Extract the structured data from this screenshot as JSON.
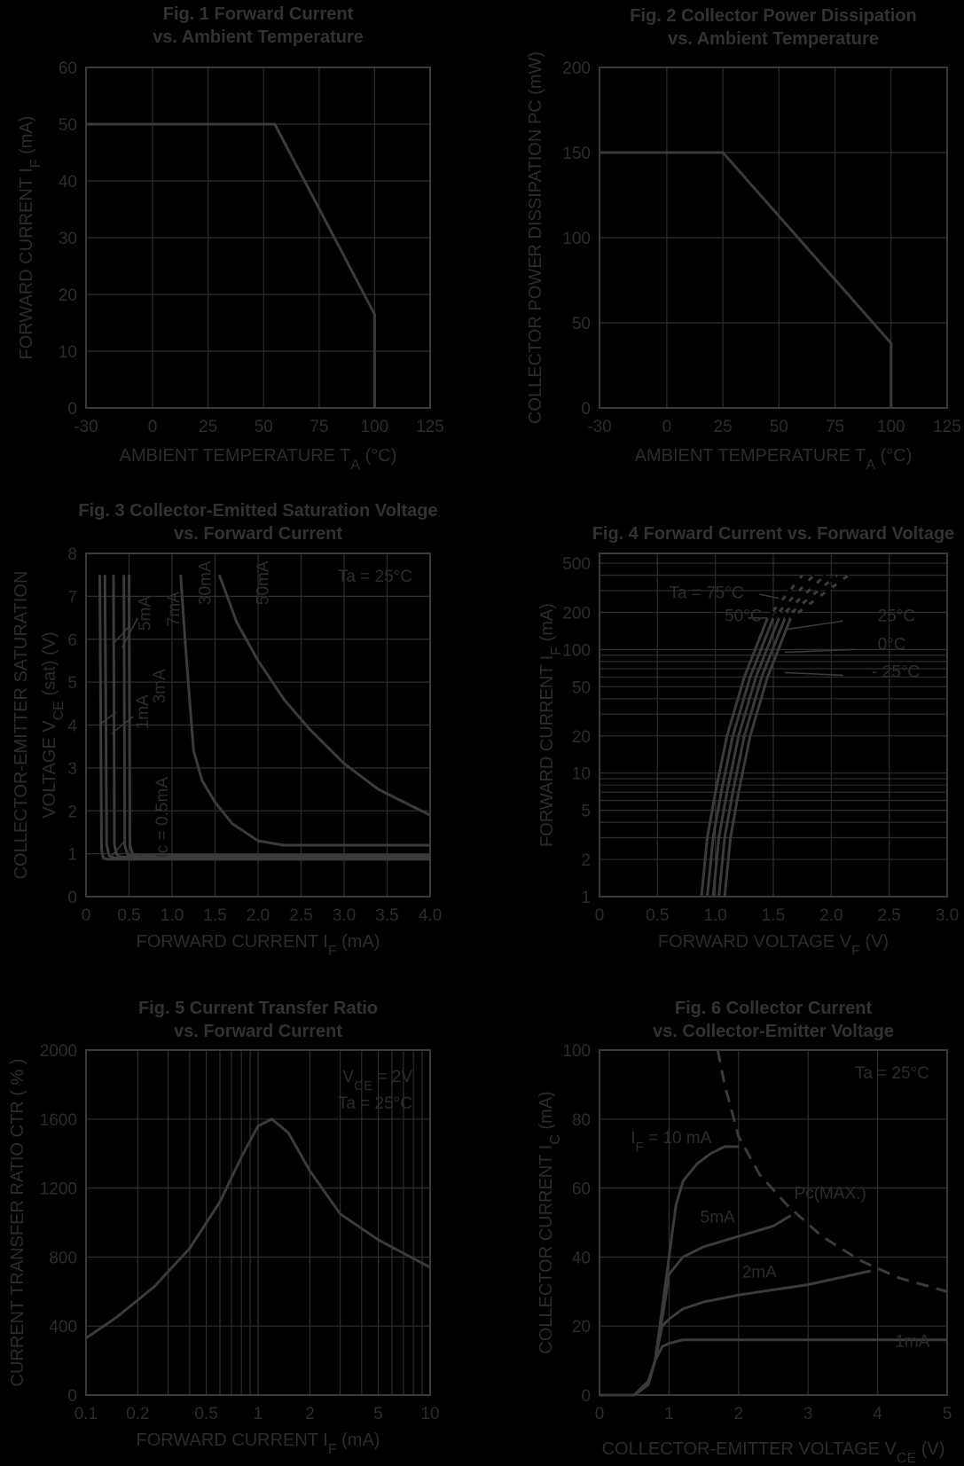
{
  "colors": {
    "background": "#000000",
    "grid": "#2e2e2e",
    "frame": "#3a3a3a",
    "curve": "#3b3b3b",
    "title": "#323232",
    "label": "#2c2c2c"
  },
  "chart_data": [
    {
      "id": "fig1",
      "type": "line",
      "title": [
        "Fig. 1 Forward Current",
        "vs. Ambient Temperature"
      ],
      "xlabel": {
        "main": "AMBIENT TEMPERATURE T",
        "sub": "A",
        "tail": " (°C)"
      },
      "ylabel": {
        "main": "FORWARD CURRENT I",
        "sub": "F",
        "tail": " (mA)"
      },
      "xlim": [
        -30,
        125
      ],
      "ylim": [
        0,
        60
      ],
      "xticks": [
        "-30",
        "0",
        "25",
        "50",
        "75",
        "100",
        "125"
      ],
      "yticks": [
        "0",
        "10",
        "20",
        "30",
        "40",
        "50",
        "60"
      ],
      "grid": true,
      "series": [
        {
          "x": [
            -30,
            55,
            100,
            100
          ],
          "y": [
            50,
            50,
            16.5,
            0
          ]
        }
      ]
    },
    {
      "id": "fig2",
      "type": "line",
      "title": [
        "Fig. 2 Collector Power Dissipation",
        "vs. Ambient Temperature"
      ],
      "xlabel": {
        "main": "AMBIENT TEMPERATURE T",
        "sub": "A",
        "tail": " (°C)"
      },
      "ylabel": {
        "main": "COLLECTOR POWER DISSIPATION PC (mW)",
        "sub": "",
        "tail": ""
      },
      "xlim": [
        -30,
        125
      ],
      "ylim": [
        0,
        200
      ],
      "xticks": [
        "-30",
        "0",
        "25",
        "50",
        "75",
        "100",
        "125"
      ],
      "yticks": [
        "0",
        "50",
        "100",
        "150",
        "200"
      ],
      "grid": true,
      "series": [
        {
          "x": [
            -30,
            25,
            100,
            100
          ],
          "y": [
            150,
            150,
            38,
            0
          ]
        }
      ]
    },
    {
      "id": "fig3",
      "type": "line",
      "title": [
        "Fig. 3 Collector-Emitted Saturation Voltage",
        "vs. Forward Current"
      ],
      "xlabel": {
        "main": "FORWARD CURRENT I",
        "sub": "F",
        "tail": " (mA)"
      },
      "ylabel": {
        "main": "COLLECTOR-EMITTER SATURATION",
        "line2": "VOLTAGE V",
        "sub": "CE",
        "tail": " (sat) (V)"
      },
      "xlim": [
        0,
        4
      ],
      "ylim": [
        0,
        8
      ],
      "xticks": [
        "0",
        "0.5",
        "1.0",
        "1.5",
        "2.0",
        "2.5",
        "3.0",
        "3.5",
        "4.0"
      ],
      "yticks": [
        "0",
        "1",
        "2",
        "3",
        "4",
        "5",
        "6",
        "7",
        "8"
      ],
      "grid": true,
      "annotation": "Ta = 25°C",
      "series_labels": [
        "Ic = 0.5mA",
        "1mA",
        "3mA",
        "5mA",
        "7mA",
        "30mA",
        "50mA"
      ],
      "series": [
        {
          "name": "Ic = 0.5mA",
          "x": [
            0.16,
            0.18,
            0.2,
            0.25,
            4.0
          ],
          "y": [
            7.5,
            1.1,
            0.9,
            0.87,
            0.87
          ]
        },
        {
          "name": "1mA",
          "x": [
            0.22,
            0.24,
            0.27,
            0.33,
            4.0
          ],
          "y": [
            7.5,
            1.2,
            0.95,
            0.9,
            0.9
          ]
        },
        {
          "name": "3mA",
          "x": [
            0.32,
            0.33,
            0.36,
            0.42,
            4.0
          ],
          "y": [
            7.5,
            1.2,
            0.97,
            0.92,
            0.92
          ]
        },
        {
          "name": "5mA",
          "x": [
            0.44,
            0.45,
            0.48,
            0.55,
            4.0
          ],
          "y": [
            7.5,
            1.2,
            0.98,
            0.94,
            0.94
          ]
        },
        {
          "name": "7mA",
          "x": [
            0.5,
            0.51,
            0.54,
            0.6,
            4.0
          ],
          "y": [
            7.5,
            1.2,
            1.0,
            0.96,
            0.96
          ]
        },
        {
          "name": "30mA",
          "x": [
            1.1,
            1.15,
            1.2,
            1.25,
            1.35,
            1.5,
            1.7,
            2.0,
            2.3,
            4.0
          ],
          "y": [
            7.5,
            6.0,
            4.7,
            3.4,
            2.7,
            2.2,
            1.7,
            1.3,
            1.2,
            1.2
          ]
        },
        {
          "name": "50mA",
          "x": [
            1.55,
            1.75,
            2.0,
            2.3,
            2.6,
            3.0,
            3.4,
            4.0
          ],
          "y": [
            7.5,
            6.4,
            5.5,
            4.6,
            3.9,
            3.1,
            2.5,
            1.9
          ]
        }
      ]
    },
    {
      "id": "fig4",
      "type": "line",
      "title": [
        "Fig. 4 Forward Current vs. Forward Voltage"
      ],
      "xlabel": {
        "main": "FORWARD VOLTAGE V",
        "sub": "F",
        "tail": " (V)"
      },
      "ylabel": {
        "main": "FORWARD CURRENT I",
        "sub": "F",
        "tail": " (mA)"
      },
      "xlim": [
        0,
        3.0
      ],
      "ylim": [
        1,
        600
      ],
      "yscale": "log",
      "xticks": [
        "0",
        "0.5",
        "1.0",
        "1.5",
        "2.0",
        "2.5",
        "3.0"
      ],
      "yticks": [
        {
          "v": 1,
          "t": "1"
        },
        {
          "v": 2,
          "t": "2"
        },
        {
          "v": 5,
          "t": "5"
        },
        {
          "v": 10,
          "t": "10"
        },
        {
          "v": 20,
          "t": "20"
        },
        {
          "v": 50,
          "t": "50"
        },
        {
          "v": 100,
          "t": "100"
        },
        {
          "v": 200,
          "t": "200"
        },
        {
          "v": 500,
          "t": "500"
        }
      ],
      "grid": true,
      "series_labels": [
        "Ta = 75°C",
        "50°C",
        "25°C",
        "0°C",
        "- 25°C"
      ],
      "series": [
        {
          "name": "Ta = 75°C",
          "x": [
            0.88,
            0.93,
            1.0,
            1.1,
            1.25,
            1.45,
            1.75
          ],
          "y": [
            1,
            3,
            7,
            20,
            60,
            180,
            400
          ]
        },
        {
          "name": "50°C",
          "x": [
            0.93,
            0.98,
            1.05,
            1.15,
            1.3,
            1.5,
            1.85
          ],
          "y": [
            1,
            3,
            7,
            20,
            60,
            180,
            400
          ]
        },
        {
          "name": "25°C",
          "x": [
            0.98,
            1.03,
            1.1,
            1.2,
            1.35,
            1.55,
            1.95
          ],
          "y": [
            1,
            3,
            7,
            20,
            60,
            180,
            400
          ]
        },
        {
          "name": "0°C",
          "x": [
            1.03,
            1.08,
            1.15,
            1.25,
            1.4,
            1.6,
            2.05
          ],
          "y": [
            1,
            3,
            7,
            20,
            60,
            180,
            400
          ]
        },
        {
          "name": "- 25°C",
          "x": [
            1.08,
            1.13,
            1.2,
            1.3,
            1.45,
            1.65,
            2.15
          ],
          "y": [
            1,
            3,
            7,
            20,
            60,
            180,
            400
          ]
        }
      ]
    },
    {
      "id": "fig5",
      "type": "line",
      "title": [
        "Fig. 5 Current Transfer Ratio",
        "vs. Forward Current"
      ],
      "xlabel": {
        "main": "FORWARD CURRENT I",
        "sub": "F",
        "tail": " (mA)"
      },
      "ylabel": {
        "main": "CURRENT TRANSFER RATIO CTR ( % )",
        "sub": "",
        "tail": ""
      },
      "xlim": [
        0.1,
        10
      ],
      "xscale": "log",
      "ylim": [
        0,
        2000
      ],
      "xticks": [
        {
          "v": 0.1,
          "t": "0.1"
        },
        {
          "v": 0.2,
          "t": "0.2"
        },
        {
          "v": 0.5,
          "t": "0.5"
        },
        {
          "v": 1,
          "t": "1"
        },
        {
          "v": 2,
          "t": "2"
        },
        {
          "v": 5,
          "t": "5"
        },
        {
          "v": 10,
          "t": "10"
        }
      ],
      "yticks": [
        "0",
        "400",
        "800",
        "1200",
        "1600",
        "2000"
      ],
      "grid": true,
      "annotation_lines": [
        {
          "main": "V",
          "sub": "CE",
          "tail": " = 2V"
        },
        {
          "main": "Ta = 25°C",
          "sub": "",
          "tail": ""
        }
      ],
      "series": [
        {
          "x": [
            0.1,
            0.15,
            0.25,
            0.4,
            0.6,
            0.8,
            1.0,
            1.2,
            1.5,
            2.0,
            3.0,
            5.0,
            10
          ],
          "y": [
            330,
            450,
            630,
            850,
            1120,
            1380,
            1560,
            1600,
            1520,
            1300,
            1050,
            900,
            740
          ]
        }
      ]
    },
    {
      "id": "fig6",
      "type": "line",
      "title": [
        "Fig. 6 Collector Current",
        "vs. Collector-Emitter Voltage"
      ],
      "xlabel": {
        "main": "COLLECTOR-EMITTER VOLTAGE V",
        "sub": "CE",
        "tail": " (V)"
      },
      "ylabel": {
        "main": "COLLECTOR CURRENT I",
        "sub": "C",
        "tail": " (mA)"
      },
      "xlim": [
        0,
        5
      ],
      "ylim": [
        0,
        100
      ],
      "xticks": [
        "0",
        "1",
        "2",
        "3",
        "4",
        "5"
      ],
      "yticks": [
        "0",
        "20",
        "40",
        "60",
        "80",
        "100"
      ],
      "grid": true,
      "annotation": "Ta = 25°C",
      "series_labels": [
        {
          "main": "I",
          "sub": "F",
          "tail": " = 10 mA"
        },
        {
          "main": "5mA",
          "sub": "",
          "tail": ""
        },
        {
          "main": "2mA",
          "sub": "",
          "tail": ""
        },
        {
          "main": "1mA",
          "sub": "",
          "tail": ""
        },
        {
          "main": "Pc(MAX.)",
          "sub": "",
          "tail": ""
        }
      ],
      "series": [
        {
          "name": "10 mA",
          "x": [
            0,
            0.5,
            0.7,
            0.8,
            0.9,
            1.0,
            1.1,
            1.2,
            1.4,
            1.6,
            1.8,
            2.0
          ],
          "y": [
            0,
            0,
            3,
            10,
            25,
            40,
            55,
            62,
            67,
            70,
            72,
            72
          ]
        },
        {
          "name": "5mA",
          "x": [
            0,
            0.5,
            0.7,
            0.8,
            0.9,
            1.0,
            1.2,
            1.5,
            2.0,
            2.5,
            2.75
          ],
          "y": [
            0,
            0,
            3,
            10,
            22,
            35,
            40,
            43,
            46,
            49,
            52
          ]
        },
        {
          "name": "2mA",
          "x": [
            0,
            0.5,
            0.7,
            0.8,
            0.9,
            1.0,
            1.2,
            1.5,
            2.0,
            3.0,
            3.9
          ],
          "y": [
            0,
            0,
            3,
            10,
            20,
            22,
            25,
            27,
            29,
            32,
            36
          ]
        },
        {
          "name": "1mA",
          "x": [
            0,
            0.5,
            0.7,
            0.8,
            0.9,
            1.0,
            1.2,
            1.5,
            5.0
          ],
          "y": [
            0,
            0,
            4,
            10,
            14,
            15,
            16,
            16,
            16
          ]
        },
        {
          "name": "Pc(MAX.)",
          "dashed": true,
          "x": [
            1.7,
            1.8,
            2.0,
            2.3,
            2.7,
            3.2,
            3.75,
            4.3,
            5.0
          ],
          "y": [
            100,
            90,
            75,
            64,
            55,
            46,
            39,
            34,
            30
          ]
        }
      ]
    }
  ]
}
